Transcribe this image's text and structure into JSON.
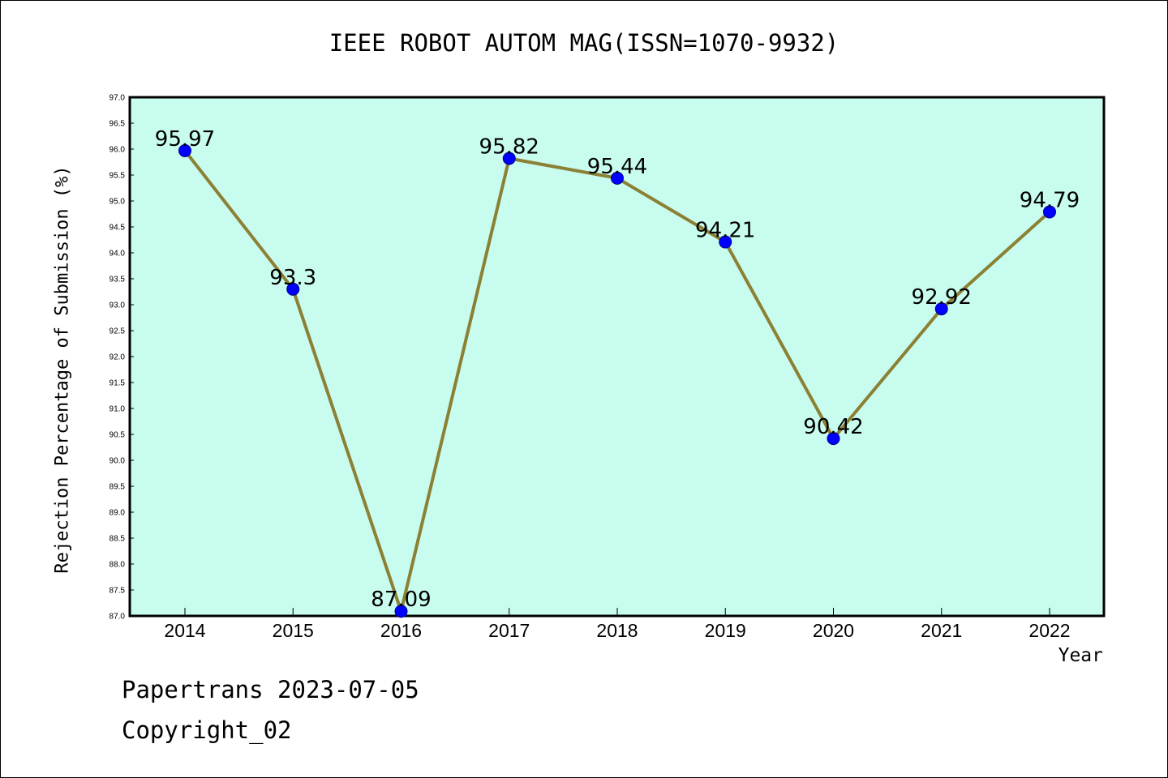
{
  "chart_data": {
    "type": "line",
    "title": "IEEE ROBOT AUTOM MAG(ISSN=1070-9932)",
    "xlabel": "Year",
    "ylabel": "Rejection Percentage of Submission (%)",
    "categories": [
      "2014",
      "2015",
      "2016",
      "2017",
      "2018",
      "2019",
      "2020",
      "2021",
      "2022"
    ],
    "series": [
      {
        "values": [
          95.97,
          93.3,
          87.09,
          95.82,
          95.44,
          94.21,
          90.42,
          92.92,
          94.79
        ],
        "labels": [
          "95.97",
          "93.3",
          "87.09",
          "95.82",
          "95.44",
          "94.21",
          "90.42",
          "92.92",
          "94.79"
        ]
      }
    ],
    "ylim": [
      87.0,
      97.0
    ],
    "yticks": [
      "87.0",
      "87.5",
      "88.0",
      "88.5",
      "89.0",
      "89.5",
      "90.0",
      "90.5",
      "91.0",
      "91.5",
      "92.0",
      "92.5",
      "93.0",
      "93.5",
      "94.0",
      "94.5",
      "95.0",
      "95.5",
      "96.0",
      "96.5",
      "97.0"
    ],
    "grid": false,
    "colors": {
      "plot_background": "#c7fcee",
      "line": "#8b8033",
      "marker": "#0000ff"
    }
  },
  "footer": {
    "line1": "Papertrans 2023-07-05",
    "line2": "Copyright_02"
  }
}
